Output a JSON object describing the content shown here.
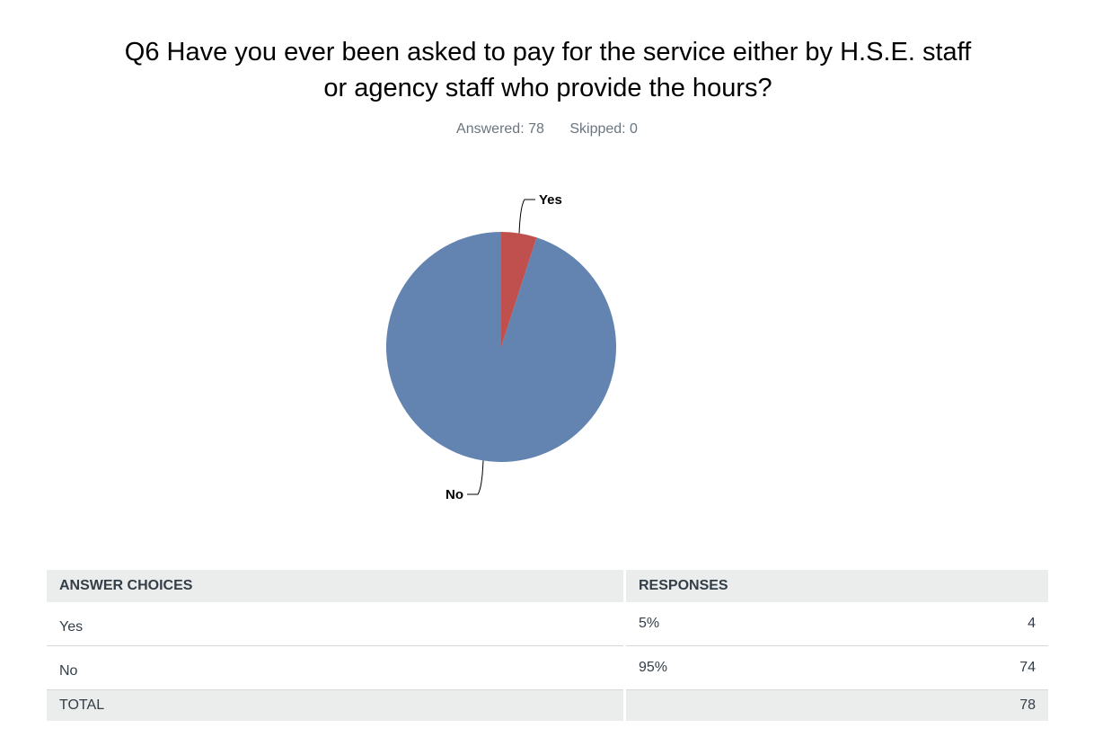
{
  "title_lines": [
    "Q6 Have you ever been asked to pay for the service either by H.S.E. staff",
    "or agency staff who provide the hours?"
  ],
  "meta": {
    "answered": "Answered: 78",
    "skipped": "Skipped: 0"
  },
  "chart_data": {
    "type": "pie",
    "slices": [
      {
        "label": "Yes",
        "value": 5,
        "color": "#c0504d"
      },
      {
        "label": "No",
        "value": 95,
        "color": "#6383b1"
      }
    ]
  },
  "table": {
    "headers": [
      "ANSWER CHOICES",
      "RESPONSES"
    ],
    "rows": [
      {
        "choice": "Yes",
        "percent": "5%",
        "count": "4"
      },
      {
        "choice": "No",
        "percent": "95%",
        "count": "74"
      }
    ],
    "total": {
      "label": "TOTAL",
      "count": "78"
    }
  }
}
